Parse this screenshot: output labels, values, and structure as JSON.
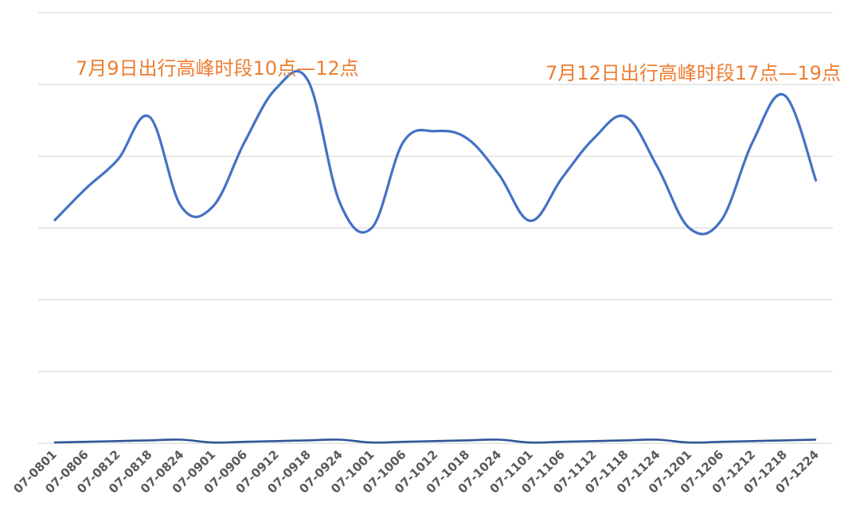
{
  "chart_data": {
    "type": "line",
    "title": "",
    "xlabel": "",
    "ylabel": "",
    "ylim": [
      0,
      6
    ],
    "grid": true,
    "legend": "none",
    "colors": {
      "main": "#4472c4",
      "secondary": "#2e5597",
      "annotation": "#ed7d31",
      "grid": "#d9d9d9",
      "tick": "#595959"
    },
    "x_tick_labels": [
      "07-0801",
      "07-0806",
      "07-0812",
      "07-0818",
      "07-0824",
      "07-0901",
      "07-0906",
      "07-0912",
      "07-0918",
      "07-0924",
      "07-1001",
      "07-1006",
      "07-1012",
      "07-1018",
      "07-1024",
      "07-1101",
      "07-1106",
      "07-1112",
      "07-1118",
      "07-1124",
      "07-1201",
      "07-1206",
      "07-1212",
      "07-1218",
      "07-1224"
    ],
    "series": [
      {
        "color": "#4472c4",
        "values": [
          3.1,
          3.55,
          3.95,
          4.55,
          3.3,
          3.3,
          4.2,
          4.95,
          5.05,
          3.35,
          3.0,
          4.2,
          4.35,
          4.25,
          3.75,
          3.1,
          3.7,
          4.25,
          4.55,
          3.85,
          3.0,
          3.1,
          4.2,
          4.85,
          3.65
        ]
      },
      {
        "color": "#2e5597",
        "values": [
          0.01,
          0.02,
          0.03,
          0.04,
          0.05,
          0.01,
          0.02,
          0.03,
          0.04,
          0.05,
          0.01,
          0.02,
          0.03,
          0.04,
          0.05,
          0.01,
          0.02,
          0.03,
          0.04,
          0.05,
          0.01,
          0.02,
          0.03,
          0.04,
          0.05
        ]
      }
    ],
    "annotations": [
      "7月9日出行高峰时段10点—12点",
      "7月12日出行高峰时段17点—19点"
    ]
  }
}
